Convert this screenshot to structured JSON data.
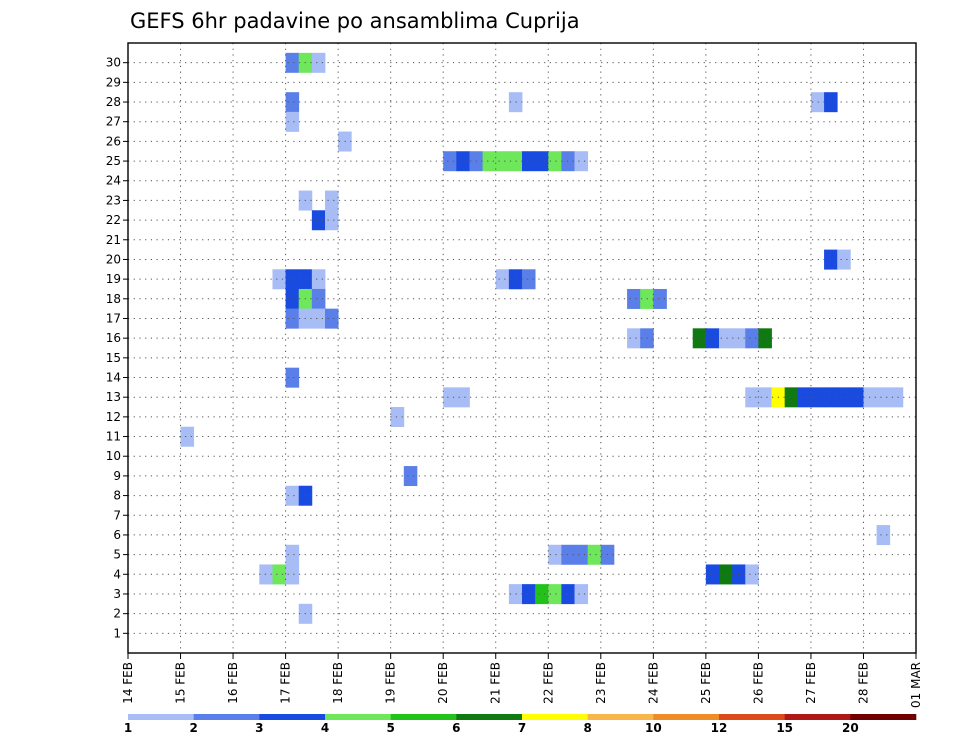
{
  "chart_data": {
    "type": "heatmap",
    "title": "GEFS 6hr padavine po ansamblima Cuprija",
    "xlabel": "",
    "ylabel": "",
    "x_ticks": [
      "14 FEB",
      "15 FEB",
      "16 FEB",
      "17 FEB",
      "18 FEB",
      "19 FEB",
      "20 FEB",
      "21 FEB",
      "22 FEB",
      "23 FEB",
      "24 FEB",
      "25 FEB",
      "26 FEB",
      "27 FEB",
      "28 FEB",
      "01 MAR"
    ],
    "y_ticks": [
      1,
      2,
      3,
      4,
      5,
      6,
      7,
      8,
      9,
      10,
      11,
      12,
      13,
      14,
      15,
      16,
      17,
      18,
      19,
      20,
      21,
      22,
      23,
      24,
      25,
      26,
      27,
      28,
      29,
      30
    ],
    "x_unit": "6hr steps from 14 FEB 00Z",
    "xlim": [
      "14 FEB",
      "01 MAR"
    ],
    "ylim": [
      0,
      31
    ],
    "grid": true,
    "legend": {
      "position": "bottom",
      "labels": [
        "1",
        "2",
        "3",
        "4",
        "5",
        "6",
        "7",
        "8",
        "10",
        "12",
        "15",
        "20"
      ],
      "colors": [
        "#a8bcf5",
        "#5a7fe8",
        "#1a4be0",
        "#6ee85a",
        "#22c21a",
        "#0f7a12",
        "#ffff00",
        "#f7b54a",
        "#ef8c2a",
        "#dd4a1a",
        "#b01818",
        "#700000"
      ]
    },
    "colors": {
      "1": "#a8bcf5",
      "2": "#5a7fe8",
      "3": "#1a4be0",
      "5": "#6ee85a",
      "6": "#22c21a",
      "7": "#0f7a12",
      "8": "#ffff00"
    },
    "cells": [
      {
        "member": 30,
        "step": 12,
        "cat": 2
      },
      {
        "member": 30,
        "step": 13,
        "cat": 5
      },
      {
        "member": 30,
        "step": 14,
        "cat": 1
      },
      {
        "member": 28,
        "step": 12,
        "cat": 2
      },
      {
        "member": 28,
        "step": 29,
        "cat": 1
      },
      {
        "member": 28,
        "step": 52,
        "cat": 1
      },
      {
        "member": 28,
        "step": 53,
        "cat": 3
      },
      {
        "member": 27,
        "step": 12,
        "cat": 1
      },
      {
        "member": 26,
        "step": 16,
        "cat": 1
      },
      {
        "member": 25,
        "step": 24,
        "cat": 2
      },
      {
        "member": 25,
        "step": 25,
        "cat": 3
      },
      {
        "member": 25,
        "step": 26,
        "cat": 2
      },
      {
        "member": 25,
        "step": 27,
        "cat": 5
      },
      {
        "member": 25,
        "step": 28,
        "cat": 5
      },
      {
        "member": 25,
        "step": 29,
        "cat": 5
      },
      {
        "member": 25,
        "step": 30,
        "cat": 3
      },
      {
        "member": 25,
        "step": 31,
        "cat": 3
      },
      {
        "member": 25,
        "step": 32,
        "cat": 5
      },
      {
        "member": 25,
        "step": 33,
        "cat": 2
      },
      {
        "member": 25,
        "step": 34,
        "cat": 1
      },
      {
        "member": 23,
        "step": 13,
        "cat": 1
      },
      {
        "member": 23,
        "step": 15,
        "cat": 1
      },
      {
        "member": 22,
        "step": 14,
        "cat": 3
      },
      {
        "member": 22,
        "step": 15,
        "cat": 1
      },
      {
        "member": 20,
        "step": 53,
        "cat": 3
      },
      {
        "member": 20,
        "step": 54,
        "cat": 1
      },
      {
        "member": 19,
        "step": 11,
        "cat": 1
      },
      {
        "member": 19,
        "step": 12,
        "cat": 3
      },
      {
        "member": 19,
        "step": 13,
        "cat": 3
      },
      {
        "member": 19,
        "step": 14,
        "cat": 1
      },
      {
        "member": 19,
        "step": 28,
        "cat": 1
      },
      {
        "member": 19,
        "step": 29,
        "cat": 3
      },
      {
        "member": 19,
        "step": 30,
        "cat": 2
      },
      {
        "member": 18,
        "step": 12,
        "cat": 3
      },
      {
        "member": 18,
        "step": 13,
        "cat": 5
      },
      {
        "member": 18,
        "step": 14,
        "cat": 2
      },
      {
        "member": 18,
        "step": 38,
        "cat": 2
      },
      {
        "member": 18,
        "step": 39,
        "cat": 5
      },
      {
        "member": 18,
        "step": 40,
        "cat": 2
      },
      {
        "member": 17,
        "step": 12,
        "cat": 2
      },
      {
        "member": 17,
        "step": 13,
        "cat": 1
      },
      {
        "member": 17,
        "step": 14,
        "cat": 1
      },
      {
        "member": 17,
        "step": 15,
        "cat": 2
      },
      {
        "member": 16,
        "step": 38,
        "cat": 1
      },
      {
        "member": 16,
        "step": 39,
        "cat": 2
      },
      {
        "member": 16,
        "step": 43,
        "cat": 7
      },
      {
        "member": 16,
        "step": 44,
        "cat": 3
      },
      {
        "member": 16,
        "step": 45,
        "cat": 1
      },
      {
        "member": 16,
        "step": 46,
        "cat": 1
      },
      {
        "member": 16,
        "step": 47,
        "cat": 2
      },
      {
        "member": 16,
        "step": 48,
        "cat": 7
      },
      {
        "member": 14,
        "step": 12,
        "cat": 2
      },
      {
        "member": 13,
        "step": 24,
        "cat": 1
      },
      {
        "member": 13,
        "step": 25,
        "cat": 1
      },
      {
        "member": 13,
        "step": 47,
        "cat": 1
      },
      {
        "member": 13,
        "step": 48,
        "cat": 1
      },
      {
        "member": 13,
        "step": 49,
        "cat": 8
      },
      {
        "member": 13,
        "step": 50,
        "cat": 7
      },
      {
        "member": 13,
        "step": 51,
        "cat": 3
      },
      {
        "member": 13,
        "step": 52,
        "cat": 3
      },
      {
        "member": 13,
        "step": 53,
        "cat": 3
      },
      {
        "member": 13,
        "step": 54,
        "cat": 3
      },
      {
        "member": 13,
        "step": 55,
        "cat": 3
      },
      {
        "member": 13,
        "step": 56,
        "cat": 1
      },
      {
        "member": 13,
        "step": 57,
        "cat": 1
      },
      {
        "member": 13,
        "step": 58,
        "cat": 1
      },
      {
        "member": 12,
        "step": 20,
        "cat": 1
      },
      {
        "member": 11,
        "step": 4,
        "cat": 1
      },
      {
        "member": 9,
        "step": 21,
        "cat": 2
      },
      {
        "member": 8,
        "step": 12,
        "cat": 1
      },
      {
        "member": 8,
        "step": 13,
        "cat": 3
      },
      {
        "member": 6,
        "step": 57,
        "cat": 1
      },
      {
        "member": 5,
        "step": 12,
        "cat": 1
      },
      {
        "member": 5,
        "step": 32,
        "cat": 1
      },
      {
        "member": 5,
        "step": 33,
        "cat": 2
      },
      {
        "member": 5,
        "step": 34,
        "cat": 2
      },
      {
        "member": 5,
        "step": 35,
        "cat": 5
      },
      {
        "member": 5,
        "step": 36,
        "cat": 2
      },
      {
        "member": 4,
        "step": 10,
        "cat": 1
      },
      {
        "member": 4,
        "step": 11,
        "cat": 5
      },
      {
        "member": 4,
        "step": 12,
        "cat": 1
      },
      {
        "member": 4,
        "step": 44,
        "cat": 3
      },
      {
        "member": 4,
        "step": 45,
        "cat": 7
      },
      {
        "member": 4,
        "step": 46,
        "cat": 3
      },
      {
        "member": 4,
        "step": 47,
        "cat": 1
      },
      {
        "member": 3,
        "step": 29,
        "cat": 1
      },
      {
        "member": 3,
        "step": 30,
        "cat": 3
      },
      {
        "member": 3,
        "step": 31,
        "cat": 6
      },
      {
        "member": 3,
        "step": 32,
        "cat": 5
      },
      {
        "member": 3,
        "step": 33,
        "cat": 3
      },
      {
        "member": 3,
        "step": 34,
        "cat": 1
      },
      {
        "member": 2,
        "step": 13,
        "cat": 1
      }
    ]
  }
}
